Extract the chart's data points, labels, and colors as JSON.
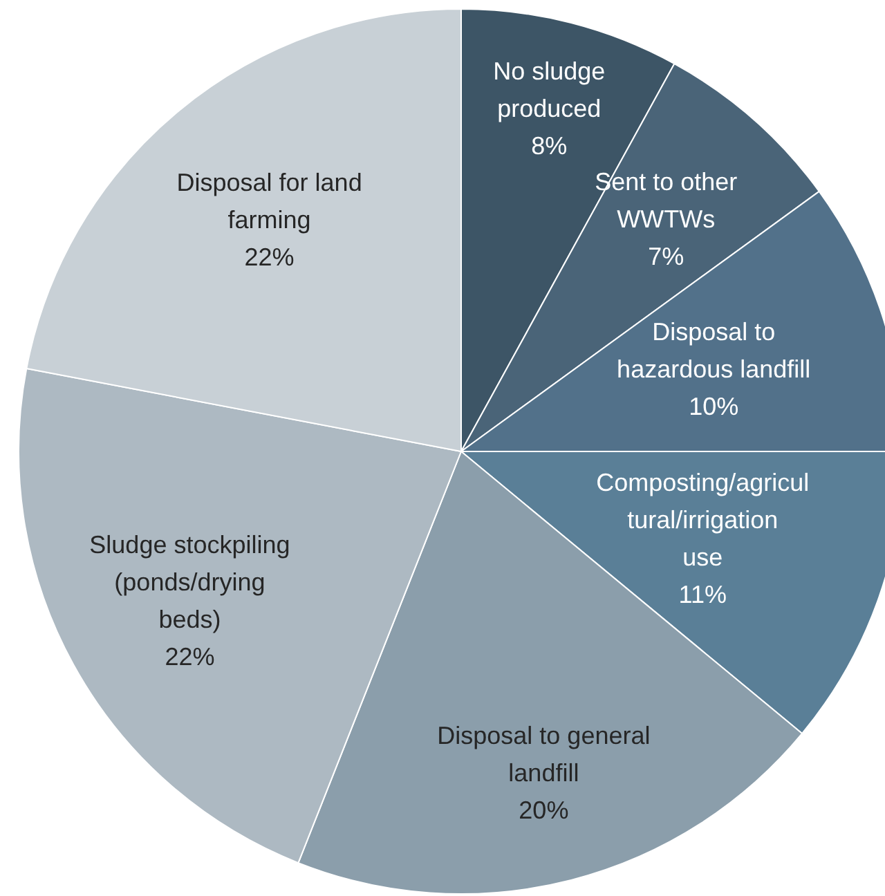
{
  "chart_data": {
    "type": "pie",
    "categories": [
      "No sludge produced",
      "Sent to other WWTWs",
      "Disposal to hazardous landfill",
      "Composting/agricultural/irrigation use",
      "Disposal to general landfill",
      "Sludge stockpiling (ponds/drying beds)",
      "Disposal for land farming"
    ],
    "values": [
      8,
      7,
      10,
      11,
      20,
      22,
      22
    ],
    "colors": [
      "#3d5566",
      "#4a6478",
      "#52718a",
      "#5a7f97",
      "#8b9eab",
      "#adb9c2",
      "#c8d0d6"
    ],
    "value_labels": [
      "8%",
      "7%",
      "10%",
      "11%",
      "20%",
      "22%",
      "22%"
    ]
  }
}
